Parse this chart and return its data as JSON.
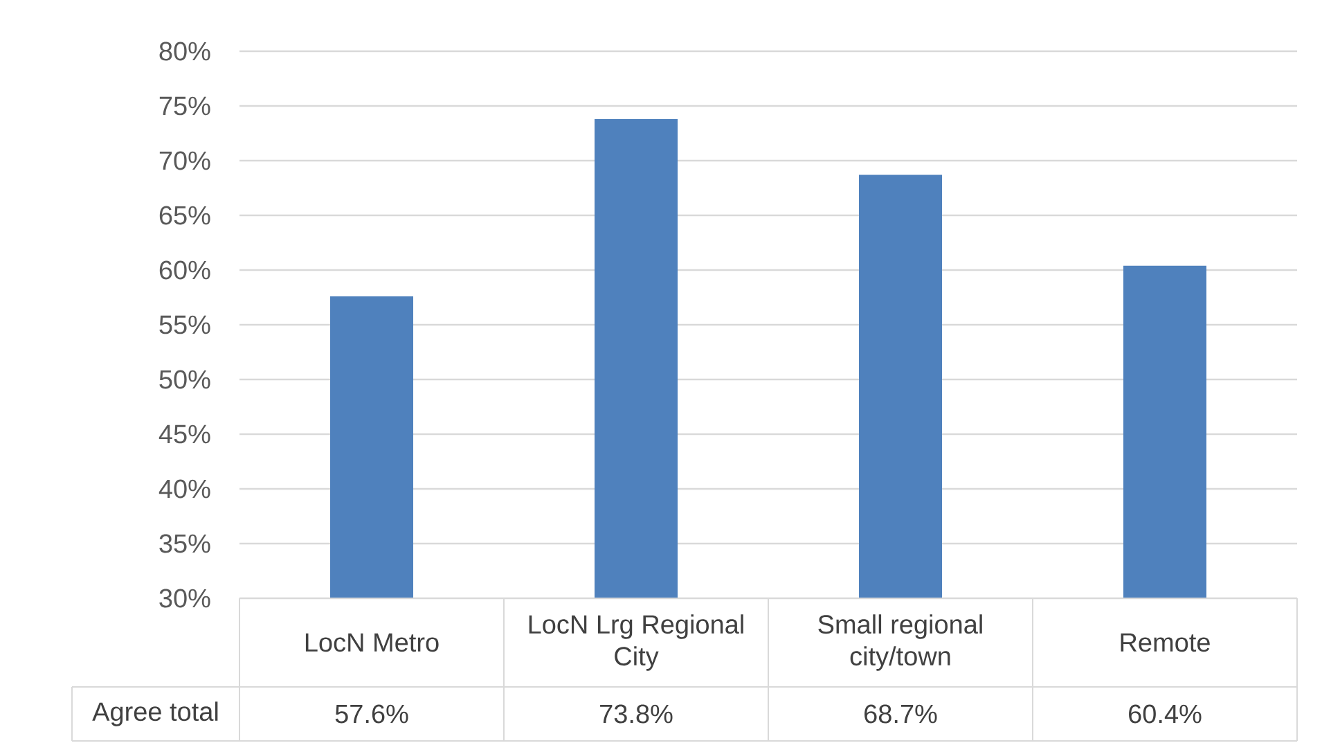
{
  "chart_data": {
    "type": "bar",
    "categories": [
      "LocN Metro",
      "LocN Lrg Regional City",
      "Small regional city/town",
      "Remote"
    ],
    "series": [
      {
        "name": "Agree total",
        "color": "#4f81bd",
        "values": [
          57.6,
          73.8,
          68.7,
          60.4
        ],
        "value_labels": [
          "57.6%",
          "73.8%",
          "68.7%",
          "60.4%"
        ]
      }
    ],
    "ylim": [
      30,
      80
    ],
    "yticks": [
      {
        "value": 30,
        "label": "30%"
      },
      {
        "value": 35,
        "label": "35%"
      },
      {
        "value": 40,
        "label": "40%"
      },
      {
        "value": 45,
        "label": "45%"
      },
      {
        "value": 50,
        "label": "50%"
      },
      {
        "value": 55,
        "label": "55%"
      },
      {
        "value": 60,
        "label": "60%"
      },
      {
        "value": 65,
        "label": "65%"
      },
      {
        "value": 70,
        "label": "70%"
      },
      {
        "value": 75,
        "label": "75%"
      },
      {
        "value": 80,
        "label": "80%"
      }
    ],
    "grid": "y"
  }
}
